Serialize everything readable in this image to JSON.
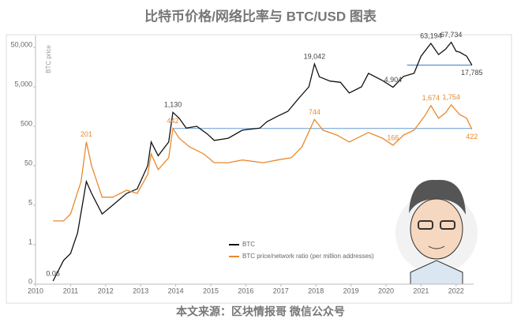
{
  "chart_data": {
    "type": "line",
    "title": "比特币价格/网络比率与 BTC/USD 图表",
    "y_label": "BTC price",
    "log_y": true,
    "xlim": [
      2010,
      2022.5
    ],
    "xticks": [
      2010,
      2011,
      2012,
      2013,
      2014,
      2015,
      2016,
      2017,
      2018,
      2019,
      2020,
      2021,
      2022
    ],
    "ylim": [
      0.05,
      100000
    ],
    "yticks": [
      {
        "value": 0.05,
        "label": "0"
      },
      {
        "value": 0.5,
        "label": "1"
      },
      5,
      50,
      500,
      {
        "value": 5000,
        "label": "5,000"
      },
      {
        "value": 50000,
        "label": "50,000"
      }
    ],
    "series": [
      {
        "name": "BTC",
        "color": "#111111",
        "x": [
          2010.5,
          2010.8,
          2011.0,
          2011.2,
          2011.45,
          2011.6,
          2011.9,
          2012.2,
          2012.6,
          2012.9,
          2013.2,
          2013.3,
          2013.5,
          2013.8,
          2013.92,
          2014.1,
          2014.3,
          2014.6,
          2014.9,
          2015.1,
          2015.5,
          2015.9,
          2016.4,
          2016.6,
          2016.9,
          2017.2,
          2017.5,
          2017.8,
          2017.96,
          2018.1,
          2018.4,
          2018.7,
          2018.95,
          2019.3,
          2019.5,
          2019.9,
          2020.2,
          2020.5,
          2020.8,
          2021.0,
          2021.28,
          2021.5,
          2021.7,
          2021.86,
          2022.0,
          2022.1,
          2022.3,
          2022.45
        ],
        "values": [
          0.06,
          0.2,
          0.3,
          1,
          20,
          10,
          3,
          5,
          10,
          13,
          50,
          200,
          90,
          200,
          1130,
          800,
          450,
          500,
          320,
          220,
          250,
          400,
          450,
          650,
          900,
          1200,
          2500,
          5000,
          19042,
          9000,
          7000,
          6500,
          3500,
          5000,
          11000,
          7200,
          4904,
          9200,
          11000,
          30000,
          63194,
          33000,
          45000,
          67734,
          40000,
          38000,
          30000,
          17785
        ]
      },
      {
        "name": "BTC price/network ratio (per million addresses)",
        "color": "#e8892e",
        "x": [
          2010.5,
          2010.8,
          2011.0,
          2011.3,
          2011.45,
          2011.6,
          2011.9,
          2012.2,
          2012.6,
          2012.9,
          2013.2,
          2013.3,
          2013.5,
          2013.8,
          2013.92,
          2014.1,
          2014.4,
          2014.8,
          2015.1,
          2015.5,
          2015.9,
          2016.5,
          2016.9,
          2017.3,
          2017.6,
          2017.96,
          2018.2,
          2018.6,
          2018.95,
          2019.5,
          2019.9,
          2020.2,
          2020.5,
          2020.8,
          2021.1,
          2021.28,
          2021.5,
          2021.7,
          2021.86,
          2022.1,
          2022.3,
          2022.45
        ],
        "values": [
          2,
          2,
          3,
          20,
          201,
          50,
          8,
          8,
          12,
          10,
          30,
          100,
          40,
          80,
          442,
          250,
          150,
          100,
          60,
          60,
          70,
          60,
          70,
          80,
          150,
          744,
          400,
          300,
          200,
          350,
          250,
          166,
          300,
          400,
          900,
          1674,
          800,
          1100,
          1754,
          1000,
          800,
          422
        ]
      }
    ],
    "reference_lines": [
      {
        "y": 442,
        "x": [
          2013.92,
          2022.45
        ],
        "color": "#7aa7d6"
      },
      {
        "y": 17785,
        "x": [
          2020.6,
          2022.45
        ],
        "color": "#5b8fd0"
      }
    ],
    "annotations": [
      {
        "label": "0.06",
        "x": 2010.5,
        "y": 0.06,
        "color": "#444444"
      },
      {
        "label": "201",
        "x": 2011.45,
        "y": 201,
        "color": "#e8892e"
      },
      {
        "label": "1,130",
        "x": 2013.92,
        "y": 1130,
        "color": "#444444"
      },
      {
        "label": "442",
        "x": 2013.92,
        "y": 442,
        "color": "#e8892e"
      },
      {
        "label": "19,042",
        "x": 2017.96,
        "y": 19042,
        "color": "#444444"
      },
      {
        "label": "744",
        "x": 2017.96,
        "y": 744,
        "color": "#e8892e"
      },
      {
        "label": "4,904",
        "x": 2020.2,
        "y": 4904,
        "color": "#444444"
      },
      {
        "label": "166",
        "x": 2020.2,
        "y": 166,
        "color": "#e8892e"
      },
      {
        "label": "63,194",
        "x": 2021.28,
        "y": 63194,
        "color": "#444444"
      },
      {
        "label": "1,674",
        "x": 2021.28,
        "y": 1674,
        "color": "#e8892e"
      },
      {
        "label": "67,734",
        "x": 2021.86,
        "y": 67734,
        "color": "#444444"
      },
      {
        "label": "1,754",
        "x": 2021.86,
        "y": 1754,
        "color": "#e8892e"
      },
      {
        "label": "17,785",
        "x": 2022.45,
        "y": 17785,
        "color": "#444444"
      },
      {
        "label": "422",
        "x": 2022.45,
        "y": 422,
        "color": "#e8892e"
      }
    ],
    "source": "本文来源：区块情报哥 微信公众号"
  }
}
